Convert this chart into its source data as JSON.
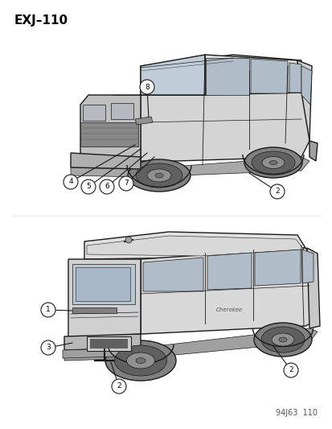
{
  "title": "EXJ–110",
  "footer": "94J63  110",
  "bg_color": "#ffffff",
  "title_fontsize": 11,
  "title_fontweight": "bold",
  "footer_fontsize": 7,
  "line_color": "#1a1a1a",
  "circle_bg": "#ffffff",
  "number_fontsize": 7
}
